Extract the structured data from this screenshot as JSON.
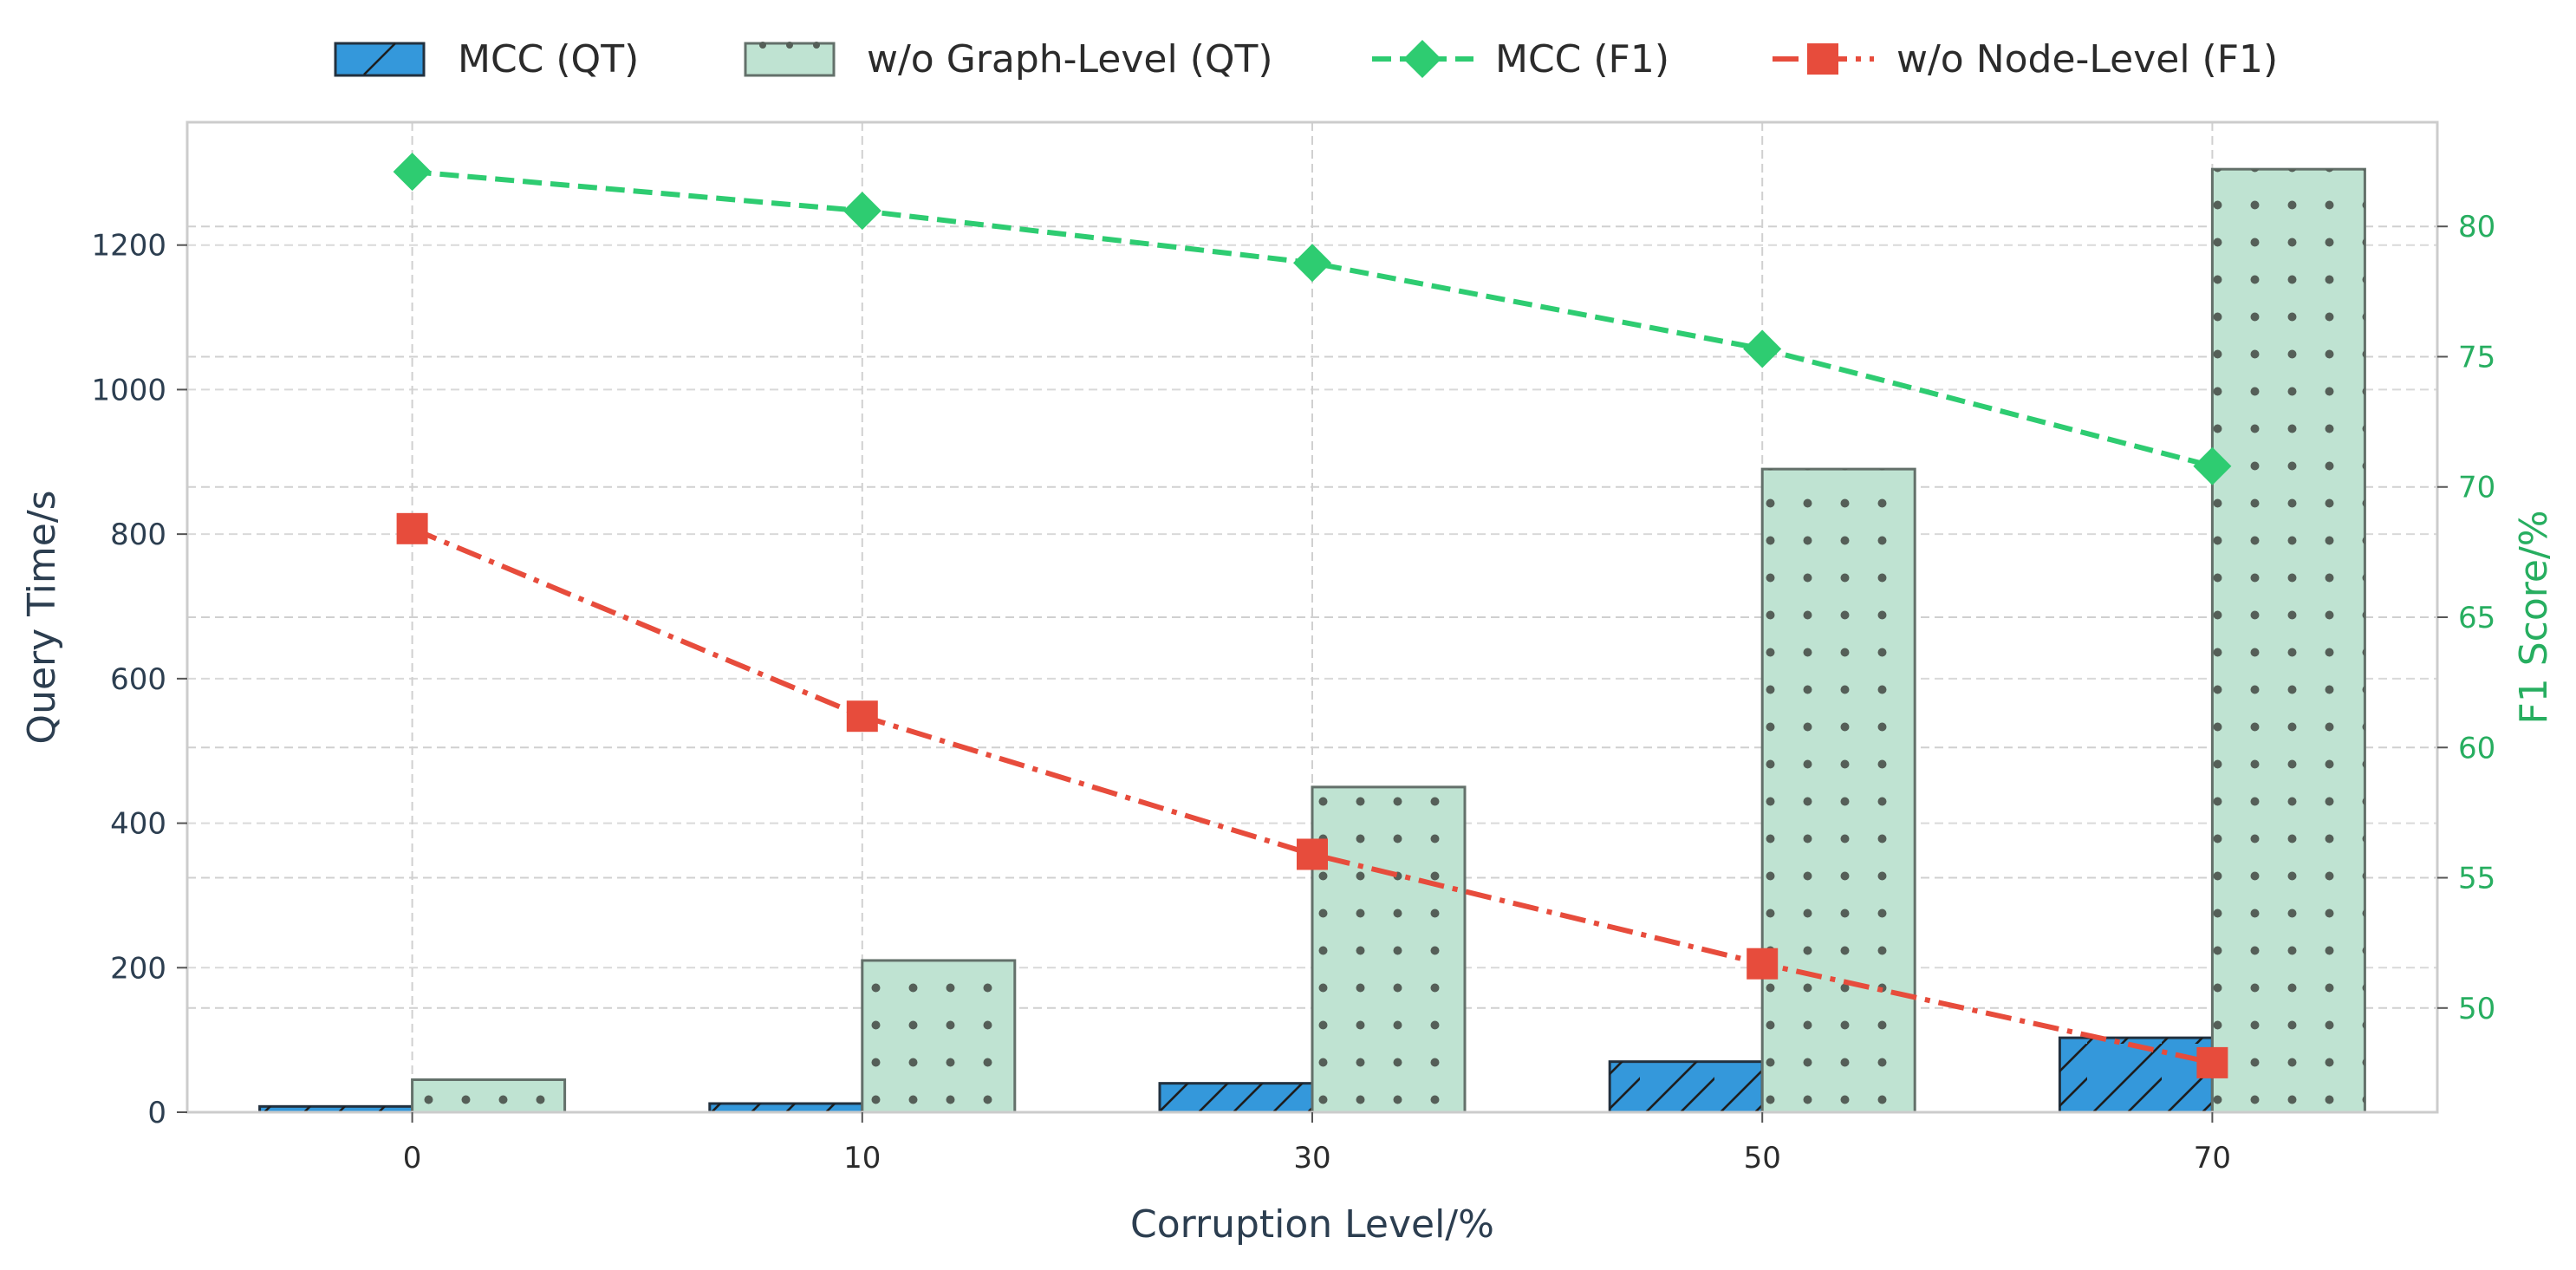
{
  "chart_data": {
    "type": "bar+line",
    "categories": [
      "0",
      "10",
      "30",
      "50",
      "70"
    ],
    "xlabel": "Corruption Level/%",
    "ylabel_left": "Query Time/s",
    "ylabel_right": "F1 Score/%",
    "ylim_left": [
      0,
      1370
    ],
    "yticks_left": [
      0,
      200,
      400,
      600,
      800,
      1000,
      1200
    ],
    "ylim_right": [
      46.0,
      84.0
    ],
    "yticks_right": [
      50,
      55,
      60,
      65,
      70,
      75,
      80
    ],
    "grid": true,
    "legend_position": "top-center",
    "bar_series": [
      {
        "name": "MCC (QT)",
        "values": [
          8,
          12,
          40,
          70,
          103
        ],
        "color": "#3498db",
        "hatch": "diagonal"
      },
      {
        "name": "w/o Graph-Level (QT)",
        "values": [
          45,
          210,
          450,
          890,
          1305
        ],
        "color": "#bfe3d2",
        "hatch": "dots"
      }
    ],
    "line_series": [
      {
        "name": "MCC (F1)",
        "values": [
          82.1,
          80.6,
          78.6,
          75.3,
          70.8
        ],
        "color": "#2ecc71",
        "marker": "diamond",
        "style": "dashed"
      },
      {
        "name": "w/o Node-Level (F1)",
        "values": [
          68.4,
          61.2,
          55.9,
          51.7,
          47.9
        ],
        "color": "#e74c3c",
        "marker": "square",
        "style": "dashdot"
      }
    ]
  }
}
